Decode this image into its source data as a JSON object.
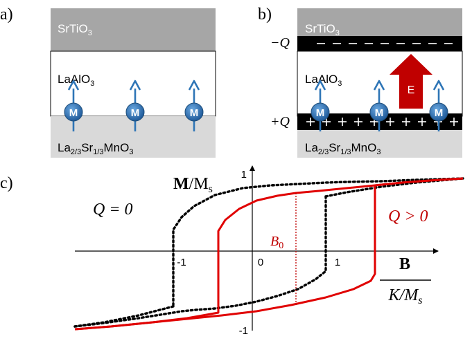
{
  "panel_a": {
    "label": "a)",
    "substrate": "SrTiO",
    "substrate_sub": "3",
    "barrier": "LaAlO",
    "barrier_sub": "3",
    "bottom_parts": [
      {
        "t": "La",
        "s": ""
      },
      {
        "t": "2/3",
        "s": "sub"
      },
      {
        "t": "Sr",
        "s": ""
      },
      {
        "t": "1/3",
        "s": "sub"
      },
      {
        "t": "MnO",
        "s": ""
      },
      {
        "t": "3",
        "s": "sub"
      }
    ],
    "moment_label": "M"
  },
  "panel_b": {
    "label": "b)",
    "substrate": "SrTiO",
    "substrate_sub": "3",
    "barrier": "LaAlO",
    "barrier_sub": "3",
    "neg_charge": "−Q",
    "pos_charge": "+Q",
    "field_label": "E",
    "moment_label": "M"
  },
  "panel_c": {
    "label": "c)",
    "y_axis_label_bold": "M",
    "y_axis_label_rest": "/M",
    "y_axis_label_sub": "s",
    "x_axis_num": "B",
    "x_axis_den": "K/M",
    "x_axis_den_sub": "s",
    "tick_y_top": "1",
    "tick_y_bottom": "-1",
    "tick_x_neg": "-1",
    "tick_x_zero": "0",
    "tick_x_pos": "1",
    "q_zero": "Q = 0",
    "q_pos": "Q > 0",
    "b0": "B",
    "b0_sub": "0"
  },
  "colors": {
    "red": "#e00000",
    "dark_red": "#c00000",
    "blue": "#2e75b6",
    "gray_dark": "#a0a0a0",
    "gray_light": "#d0d0d0"
  }
}
